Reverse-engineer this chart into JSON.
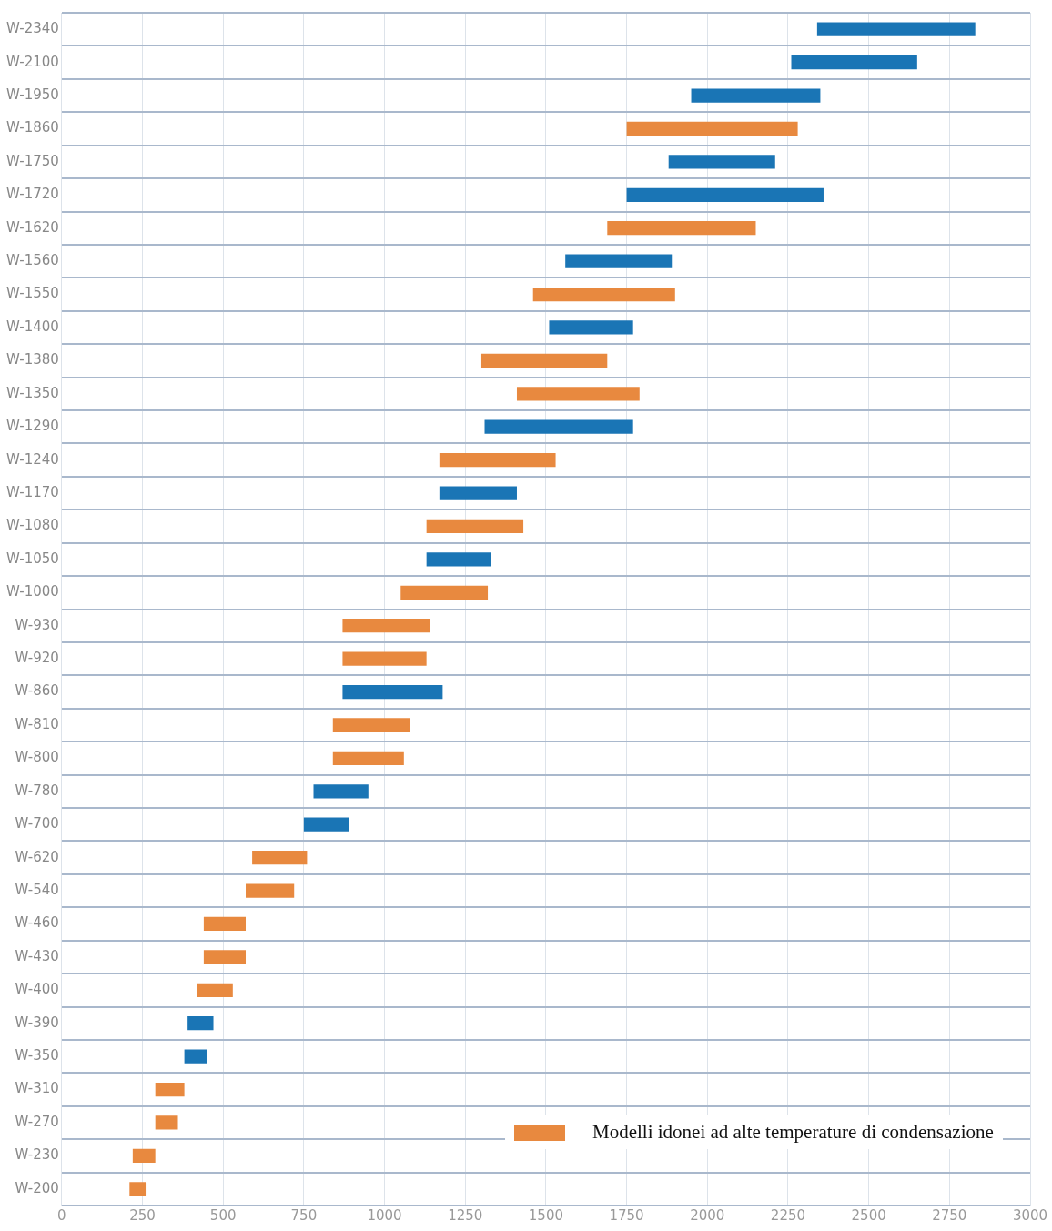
{
  "chart_data": {
    "type": "bar",
    "orientation": "horizontal",
    "categories": [
      "W-2340",
      "W-2100",
      "W-1950",
      "W-1860",
      "W-1750",
      "W-1720",
      "W-1620",
      "W-1560",
      "W-1550",
      "W-1400",
      "W-1380",
      "W-1350",
      "W-1290",
      "W-1240",
      "W-1170",
      "W-1080",
      "W-1050",
      "W-1000",
      "W-930",
      "W-920",
      "W-860",
      "W-810",
      "W-800",
      "W-780",
      "W-700",
      "W-620",
      "W-540",
      "W-460",
      "W-430",
      "W-400",
      "W-390",
      "W-350",
      "W-310",
      "W-270",
      "W-230",
      "W-200"
    ],
    "series": [
      {
        "name": "Modelli idonei ad alte temperature di condensazione",
        "color": "#e8893f",
        "base": [
          null,
          null,
          null,
          1750,
          null,
          null,
          1690,
          null,
          1460,
          null,
          1300,
          1410,
          null,
          1170,
          null,
          1130,
          null,
          1050,
          870,
          870,
          null,
          840,
          840,
          null,
          null,
          590,
          570,
          440,
          440,
          420,
          null,
          null,
          290,
          290,
          220,
          210
        ],
        "values": [
          null,
          null,
          null,
          530,
          null,
          null,
          460,
          null,
          440,
          null,
          390,
          380,
          null,
          360,
          null,
          300,
          null,
          270,
          270,
          260,
          null,
          240,
          220,
          null,
          null,
          170,
          150,
          130,
          130,
          110,
          null,
          null,
          90,
          70,
          70,
          50
        ]
      },
      {
        "color": "#1a75b5",
        "base": [
          2340,
          2260,
          1950,
          null,
          1880,
          1750,
          null,
          1560,
          null,
          1510,
          null,
          null,
          1310,
          null,
          1170,
          null,
          1130,
          null,
          null,
          null,
          870,
          null,
          null,
          780,
          750,
          null,
          null,
          null,
          null,
          null,
          390,
          380,
          null,
          null,
          null,
          null
        ],
        "values": [
          490,
          390,
          400,
          null,
          330,
          610,
          null,
          330,
          null,
          260,
          null,
          null,
          460,
          null,
          240,
          null,
          200,
          null,
          null,
          null,
          310,
          null,
          null,
          170,
          140,
          null,
          null,
          null,
          null,
          null,
          80,
          70,
          null,
          null,
          null,
          null
        ]
      }
    ],
    "xlim": [
      0,
      3000
    ],
    "xticks": [
      0,
      250,
      500,
      750,
      1000,
      1250,
      1500,
      1750,
      2000,
      2250,
      2500,
      2750,
      3000
    ],
    "grid": true,
    "legend": "bottom right"
  }
}
